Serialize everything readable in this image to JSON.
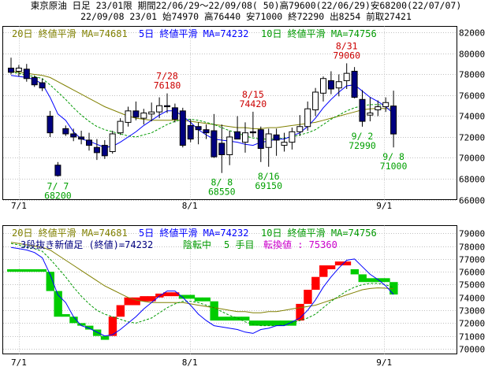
{
  "header": {
    "line1": "東京原油 日足 23/01限 期間22/06/29～22/09/08( 50)高79600(22/06/29)安68200(22/07/07)",
    "line2": "22/09/08 23/01 始74970 高76440 安71000 終72290 出8254 前取27421"
  },
  "colors": {
    "up": "#ffffff",
    "down": "#000080",
    "ma20": "#808000",
    "ma5": "#0000ff",
    "ma10": "#009900",
    "annot_red": "#cc0000",
    "annot_green": "#00a000",
    "renko_up": "#ff0000",
    "renko_down": "#00cc00",
    "kagi_text": "#cc00cc"
  },
  "top_legend": {
    "ma20": "20日 終値平滑 MA=74681",
    "ma5": "5日 終値平滑 MA=74232",
    "ma10": "10日 終値平滑 MA=74756"
  },
  "bottom_legend": {
    "ma20": "20日 終値平滑 MA=74681",
    "ma5": "5日 終値平滑 MA=74232",
    "ma10": "10日 終値平滑 MA=74756",
    "renko_a": "3段抜き新値足 (終値)=74232",
    "renko_b": "陰転中",
    "renko_c": "5 手目",
    "renko_d": "転換値 : 75360"
  },
  "x_ticks": [
    "7/1",
    "8/1",
    "9/1"
  ],
  "chart_data": [
    {
      "type": "candlestick",
      "yaxis": [
        "82000",
        "80000",
        "78000",
        "76000",
        "74000",
        "72000",
        "70000",
        "68000",
        "66000"
      ],
      "ylim": [
        66000,
        82600
      ],
      "candles": [
        {
          "o": 78600,
          "h": 79600,
          "l": 78000,
          "c": 78200
        },
        {
          "o": 78300,
          "h": 78900,
          "l": 77800,
          "c": 78600
        },
        {
          "o": 78500,
          "h": 79000,
          "l": 77300,
          "c": 77600
        },
        {
          "o": 77700,
          "h": 77900,
          "l": 76800,
          "c": 77000
        },
        {
          "o": 77200,
          "h": 77600,
          "l": 76400,
          "c": 76700
        },
        {
          "o": 74000,
          "h": 74500,
          "l": 72000,
          "c": 72400
        },
        {
          "o": 69300,
          "h": 69600,
          "l": 68200,
          "c": 68300
        },
        {
          "o": 72800,
          "h": 73100,
          "l": 72100,
          "c": 72300
        },
        {
          "o": 72300,
          "h": 72800,
          "l": 71600,
          "c": 72000
        },
        {
          "o": 72000,
          "h": 72600,
          "l": 71300,
          "c": 71800
        },
        {
          "o": 71700,
          "h": 72400,
          "l": 70700,
          "c": 71200
        },
        {
          "o": 71000,
          "h": 71800,
          "l": 69800,
          "c": 70500
        },
        {
          "o": 71200,
          "h": 71700,
          "l": 69900,
          "c": 70200
        },
        {
          "o": 70600,
          "h": 72600,
          "l": 70400,
          "c": 72300
        },
        {
          "o": 72400,
          "h": 73800,
          "l": 72200,
          "c": 73500
        },
        {
          "o": 73400,
          "h": 74900,
          "l": 73000,
          "c": 74500
        },
        {
          "o": 74500,
          "h": 75400,
          "l": 73600,
          "c": 73900
        },
        {
          "o": 73800,
          "h": 74700,
          "l": 73200,
          "c": 74300
        },
        {
          "o": 74200,
          "h": 75300,
          "l": 73500,
          "c": 74400
        },
        {
          "o": 74400,
          "h": 75800,
          "l": 73800,
          "c": 75000
        },
        {
          "o": 75000,
          "h": 76180,
          "l": 74300,
          "c": 74900
        },
        {
          "o": 74800,
          "h": 75200,
          "l": 73400,
          "c": 73700
        },
        {
          "o": 74500,
          "h": 74800,
          "l": 71000,
          "c": 71200
        },
        {
          "o": 73100,
          "h": 73700,
          "l": 71500,
          "c": 71800
        },
        {
          "o": 73000,
          "h": 73400,
          "l": 71300,
          "c": 72700
        },
        {
          "o": 72700,
          "h": 73200,
          "l": 71800,
          "c": 72400
        },
        {
          "o": 72600,
          "h": 74200,
          "l": 70000,
          "c": 70100
        },
        {
          "o": 71400,
          "h": 73200,
          "l": 68550,
          "c": 70300
        },
        {
          "o": 70300,
          "h": 72600,
          "l": 69300,
          "c": 72000
        },
        {
          "o": 72500,
          "h": 74000,
          "l": 71800,
          "c": 71800
        },
        {
          "o": 71500,
          "h": 73400,
          "l": 70500,
          "c": 72400
        },
        {
          "o": 72500,
          "h": 74420,
          "l": 72000,
          "c": 72400
        },
        {
          "o": 72700,
          "h": 73000,
          "l": 69600,
          "c": 70900
        },
        {
          "o": 71000,
          "h": 72800,
          "l": 69150,
          "c": 72300
        },
        {
          "o": 72200,
          "h": 72800,
          "l": 70200,
          "c": 71700
        },
        {
          "o": 71200,
          "h": 72400,
          "l": 70600,
          "c": 71500
        },
        {
          "o": 71500,
          "h": 72900,
          "l": 70800,
          "c": 72500
        },
        {
          "o": 72500,
          "h": 74100,
          "l": 72100,
          "c": 73000
        },
        {
          "o": 73000,
          "h": 75400,
          "l": 72600,
          "c": 74700
        },
        {
          "o": 74600,
          "h": 76700,
          "l": 74000,
          "c": 76300
        },
        {
          "o": 76200,
          "h": 77800,
          "l": 75400,
          "c": 77600
        },
        {
          "o": 77400,
          "h": 78300,
          "l": 76100,
          "c": 76600
        },
        {
          "o": 76700,
          "h": 78000,
          "l": 75900,
          "c": 77300
        },
        {
          "o": 77400,
          "h": 79060,
          "l": 76600,
          "c": 78100
        },
        {
          "o": 78300,
          "h": 78700,
          "l": 75700,
          "c": 75800
        },
        {
          "o": 75600,
          "h": 76500,
          "l": 72990,
          "c": 73500
        },
        {
          "o": 74100,
          "h": 75800,
          "l": 73500,
          "c": 74300
        },
        {
          "o": 74600,
          "h": 75500,
          "l": 74000,
          "c": 74900
        },
        {
          "o": 74900,
          "h": 75800,
          "l": 74400,
          "c": 75300
        },
        {
          "o": 74970,
          "h": 76440,
          "l": 71000,
          "c": 72290
        }
      ],
      "ma5": [
        77900,
        77800,
        77700,
        77500,
        77100,
        75800,
        74200,
        73600,
        72500,
        71800,
        71600,
        71300,
        71000,
        71100,
        71500,
        72000,
        72500,
        73100,
        73600,
        74100,
        74500,
        74500,
        74000,
        73400,
        72700,
        72200,
        71800,
        71700,
        71600,
        71500,
        71300,
        71200,
        71500,
        71600,
        71800,
        71800,
        72100,
        72400,
        73000,
        73800,
        74800,
        75600,
        76300,
        76900,
        77000,
        76400,
        75800,
        75400,
        74900,
        74232
      ],
      "ma10": [
        78200,
        78100,
        77900,
        77800,
        77600,
        77000,
        76300,
        75600,
        74800,
        74100,
        73500,
        73000,
        72700,
        72500,
        72300,
        72100,
        72000,
        72200,
        72400,
        72800,
        73200,
        73500,
        73700,
        73700,
        73600,
        73400,
        73200,
        72900,
        72600,
        72400,
        72100,
        71900,
        71800,
        71800,
        71800,
        71900,
        72000,
        72200,
        72400,
        72700,
        73200,
        73700,
        74100,
        74500,
        74800,
        75000,
        75100,
        75100,
        75000,
        74756
      ],
      "ma20": [
        78300,
        78200,
        78100,
        78000,
        77900,
        77700,
        77300,
        76900,
        76500,
        76100,
        75700,
        75300,
        74900,
        74600,
        74300,
        74000,
        73800,
        73700,
        73600,
        73600,
        73600,
        73600,
        73600,
        73500,
        73400,
        73300,
        73200,
        73100,
        73000,
        72900,
        72900,
        72800,
        72800,
        72900,
        72900,
        73000,
        73100,
        73200,
        73300,
        73400,
        73600,
        73800,
        74000,
        74200,
        74400,
        74600,
        74700,
        74750,
        74720,
        74681
      ]
    },
    {
      "type": "renko",
      "yaxis": [
        "79000",
        "78000",
        "77000",
        "76000",
        "75000",
        "74000",
        "73000",
        "72000",
        "71000",
        "70000"
      ],
      "ylim": [
        69600,
        79600
      ],
      "blocks": [
        {
          "x": 0,
          "lo": 76000,
          "hi": 76200,
          "dir": "down"
        },
        {
          "x": 1,
          "lo": 76000,
          "hi": 76200,
          "dir": "down"
        },
        {
          "x": 2,
          "lo": 76000,
          "hi": 76200,
          "dir": "down"
        },
        {
          "x": 3,
          "lo": 76000,
          "hi": 76200,
          "dir": "down"
        },
        {
          "x": 4,
          "lo": 76000,
          "hi": 76200,
          "dir": "down"
        },
        {
          "x": 5,
          "lo": 74500,
          "hi": 76000,
          "dir": "down"
        },
        {
          "x": 6,
          "lo": 72500,
          "hi": 74500,
          "dir": "down"
        },
        {
          "x": 7,
          "lo": 72500,
          "hi": 72700,
          "dir": "down"
        },
        {
          "x": 8,
          "lo": 72000,
          "hi": 72500,
          "dir": "down"
        },
        {
          "x": 9,
          "lo": 71800,
          "hi": 72000,
          "dir": "down"
        },
        {
          "x": 10,
          "lo": 71500,
          "hi": 71800,
          "dir": "down"
        },
        {
          "x": 11,
          "lo": 71000,
          "hi": 71500,
          "dir": "down"
        },
        {
          "x": 12,
          "lo": 70700,
          "hi": 71000,
          "dir": "down"
        },
        {
          "x": 13,
          "lo": 71000,
          "hi": 72500,
          "dir": "up"
        },
        {
          "x": 14,
          "lo": 72500,
          "hi": 73400,
          "dir": "up"
        },
        {
          "x": 15,
          "lo": 73400,
          "hi": 74000,
          "dir": "up"
        },
        {
          "x": 16,
          "lo": 73400,
          "hi": 74000,
          "dir": "up"
        },
        {
          "x": 17,
          "lo": 73700,
          "hi": 74100,
          "dir": "up"
        },
        {
          "x": 18,
          "lo": 73700,
          "hi": 74100,
          "dir": "up"
        },
        {
          "x": 19,
          "lo": 74000,
          "hi": 74300,
          "dir": "up"
        },
        {
          "x": 20,
          "lo": 74100,
          "hi": 74400,
          "dir": "up"
        },
        {
          "x": 21,
          "lo": 74100,
          "hi": 74400,
          "dir": "up"
        },
        {
          "x": 22,
          "lo": 73900,
          "hi": 74200,
          "dir": "down"
        },
        {
          "x": 23,
          "lo": 73900,
          "hi": 74200,
          "dir": "down"
        },
        {
          "x": 24,
          "lo": 73700,
          "hi": 74000,
          "dir": "down"
        },
        {
          "x": 25,
          "lo": 73700,
          "hi": 74000,
          "dir": "down"
        },
        {
          "x": 26,
          "lo": 72200,
          "hi": 73700,
          "dir": "down"
        },
        {
          "x": 27,
          "lo": 72200,
          "hi": 72500,
          "dir": "down"
        },
        {
          "x": 28,
          "lo": 72200,
          "hi": 72500,
          "dir": "down"
        },
        {
          "x": 29,
          "lo": 72200,
          "hi": 72500,
          "dir": "down"
        },
        {
          "x": 30,
          "lo": 72200,
          "hi": 72500,
          "dir": "down"
        },
        {
          "x": 31,
          "lo": 71800,
          "hi": 72200,
          "dir": "down"
        },
        {
          "x": 32,
          "lo": 71800,
          "hi": 72200,
          "dir": "down"
        },
        {
          "x": 33,
          "lo": 71800,
          "hi": 72200,
          "dir": "down"
        },
        {
          "x": 34,
          "lo": 71800,
          "hi": 72200,
          "dir": "down"
        },
        {
          "x": 35,
          "lo": 71800,
          "hi": 72200,
          "dir": "down"
        },
        {
          "x": 36,
          "lo": 71800,
          "hi": 72200,
          "dir": "down"
        },
        {
          "x": 37,
          "lo": 72200,
          "hi": 73500,
          "dir": "up"
        },
        {
          "x": 38,
          "lo": 73500,
          "hi": 74600,
          "dir": "up"
        },
        {
          "x": 39,
          "lo": 74600,
          "hi": 75600,
          "dir": "up"
        },
        {
          "x": 40,
          "lo": 75600,
          "hi": 76500,
          "dir": "up"
        },
        {
          "x": 41,
          "lo": 76200,
          "hi": 76500,
          "dir": "up"
        },
        {
          "x": 42,
          "lo": 76500,
          "hi": 76800,
          "dir": "up"
        },
        {
          "x": 43,
          "lo": 76500,
          "hi": 76800,
          "dir": "up"
        },
        {
          "x": 44,
          "lo": 75800,
          "hi": 76200,
          "dir": "down"
        },
        {
          "x": 45,
          "lo": 75200,
          "hi": 75800,
          "dir": "down"
        },
        {
          "x": 46,
          "lo": 75200,
          "hi": 75500,
          "dir": "down"
        },
        {
          "x": 47,
          "lo": 75200,
          "hi": 75500,
          "dir": "down"
        },
        {
          "x": 48,
          "lo": 75200,
          "hi": 75500,
          "dir": "down"
        },
        {
          "x": 49,
          "lo": 74232,
          "hi": 75200,
          "dir": "down"
        }
      ]
    }
  ],
  "annotations": [
    {
      "date": "7/28",
      "value": "76180",
      "i": 20,
      "color": "red",
      "pos": "above"
    },
    {
      "date": "8/15",
      "value": "74420",
      "i": 31,
      "color": "red",
      "pos": "above"
    },
    {
      "date": "8/31",
      "value": "79060",
      "i": 43,
      "color": "red",
      "pos": "above"
    },
    {
      "date": "7/ 7",
      "value": "68200",
      "i": 6,
      "color": "green",
      "pos": "below"
    },
    {
      "date": "8/ 8",
      "value": "68550",
      "i": 27,
      "color": "green",
      "pos": "below"
    },
    {
      "date": "8/16",
      "value": "69150",
      "i": 33,
      "color": "green",
      "pos": "below"
    },
    {
      "date": "9/ 2",
      "value": "72990",
      "i": 45,
      "color": "green",
      "pos": "below"
    },
    {
      "date": "9/ 8",
      "value": "71000",
      "i": 49,
      "color": "green",
      "pos": "below"
    }
  ]
}
